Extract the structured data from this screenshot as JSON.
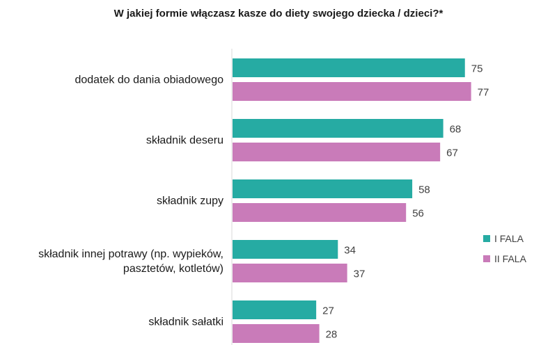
{
  "chart_data": {
    "type": "bar",
    "orientation": "horizontal",
    "title": "W jakiej formie włączasz kasze do diety swojego dziecka / dzieci?*",
    "categories": [
      [
        "dodatek do dania obiadowego"
      ],
      [
        "składnik deseru"
      ],
      [
        "składnik zupy"
      ],
      [
        "składnik innej potrawy (np. wypieków,",
        "pasztetów, kotletów)"
      ],
      [
        "składnik sałatki"
      ]
    ],
    "series": [
      {
        "name": "I FALA",
        "values": [
          75,
          68,
          58,
          34,
          27
        ],
        "color": "#26ABA3"
      },
      {
        "name": "II FALA",
        "values": [
          77,
          67,
          56,
          37,
          28
        ],
        "color": "#C97BB9"
      }
    ],
    "xlim": [
      0,
      100
    ],
    "grid": false,
    "legend": "right",
    "data_labels": true
  }
}
